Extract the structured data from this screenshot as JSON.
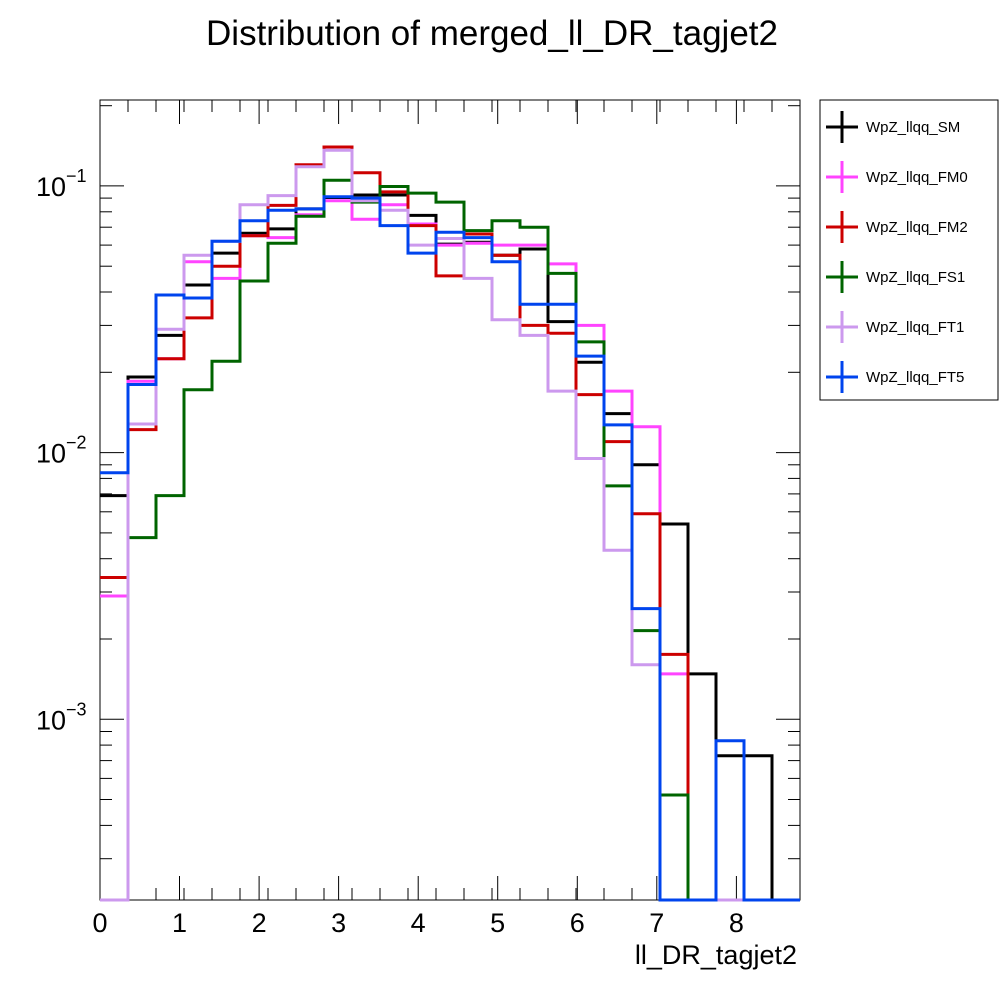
{
  "chart_data": {
    "type": "line",
    "title": "Distribution of merged_ll_DR_tagjet2",
    "xlabel": "ll_DR_tagjet2",
    "ylabel": "",
    "xlim": [
      0,
      8.8
    ],
    "ylim": [
      0.00021,
      0.21
    ],
    "yscale": "log",
    "x_ticks": [
      "0",
      "1",
      "2",
      "3",
      "4",
      "5",
      "6",
      "7",
      "8"
    ],
    "y_ticks": [
      {
        "value": 0.1,
        "base": "10",
        "exp": "−1"
      },
      {
        "value": 0.01,
        "base": "10",
        "exp": "−2"
      },
      {
        "value": 0.001,
        "base": "10",
        "exp": "−3"
      }
    ],
    "bin_edges": [
      0,
      0.352,
      0.704,
      1.056,
      1.408,
      1.76,
      2.112,
      2.464,
      2.816,
      3.168,
      3.52,
      3.872,
      4.224,
      4.576,
      4.928,
      5.28,
      5.632,
      5.984,
      6.336,
      6.688,
      7.04,
      7.392,
      7.744,
      8.096,
      8.448,
      8.8
    ],
    "legend_position": "top-right outside",
    "series": [
      {
        "name": "WpZ_llqq_SM",
        "color": "#000000",
        "values": [
          0.0069,
          0.0192,
          0.0275,
          0.0425,
          0.056,
          0.0665,
          0.069,
          0.082,
          0.0905,
          0.0925,
          0.0925,
          0.0775,
          0.0605,
          0.0615,
          0.055,
          0.058,
          0.031,
          0.0218,
          0.014,
          0.009,
          0.0054,
          0.00148,
          0.00073,
          0.00073,
          0,
          0
        ]
      },
      {
        "name": "WpZ_llqq_FM0",
        "color": "#ff44ff",
        "values": [
          0.0029,
          0.0185,
          0.0225,
          0.052,
          0.045,
          0.065,
          0.064,
          0.078,
          0.088,
          0.075,
          0.085,
          0.072,
          0.06,
          0.061,
          0.06,
          0.06,
          0.051,
          0.03,
          0.017,
          0.0125,
          0.00148,
          0,
          0,
          0,
          0,
          0
        ]
      },
      {
        "name": "WpZ_llqq_FM2",
        "color": "#cc0000",
        "values": [
          0.0034,
          0.0122,
          0.0225,
          0.032,
          0.05,
          0.065,
          0.0845,
          0.12,
          0.14,
          0.112,
          0.095,
          0.071,
          0.046,
          0.066,
          0.055,
          0.03,
          0.028,
          0.0165,
          0.011,
          0.0059,
          0.00175,
          0,
          0,
          0,
          0,
          0
        ]
      },
      {
        "name": "WpZ_llqq_FS1",
        "color": "#006400",
        "values": [
          0,
          0.0048,
          0.0069,
          0.0172,
          0.022,
          0.044,
          0.061,
          0.077,
          0.105,
          0.087,
          0.0995,
          0.094,
          0.087,
          0.068,
          0.074,
          0.07,
          0.047,
          0.026,
          0.0075,
          0.00215,
          0.00052,
          0,
          0,
          0,
          0,
          0
        ]
      },
      {
        "name": "WpZ_llqq_FT1",
        "color": "#cc99ee",
        "values": [
          0,
          0.0128,
          0.029,
          0.055,
          0.062,
          0.085,
          0.092,
          0.118,
          0.136,
          0.088,
          0.081,
          0.06,
          0.0635,
          0.045,
          0.0315,
          0.0275,
          0.017,
          0.0095,
          0.0043,
          0.0016,
          0,
          0,
          0,
          0,
          0
        ]
      },
      {
        "name": "WpZ_llqq_FT5",
        "color": "#0044ee",
        "values": [
          0.0084,
          0.018,
          0.039,
          0.038,
          0.062,
          0.074,
          0.081,
          0.082,
          0.091,
          0.09,
          0.071,
          0.056,
          0.067,
          0.064,
          0.052,
          0.036,
          0.036,
          0.023,
          0.0127,
          0.0026,
          0,
          0,
          0.00083,
          0,
          0,
          0
        ]
      }
    ]
  }
}
